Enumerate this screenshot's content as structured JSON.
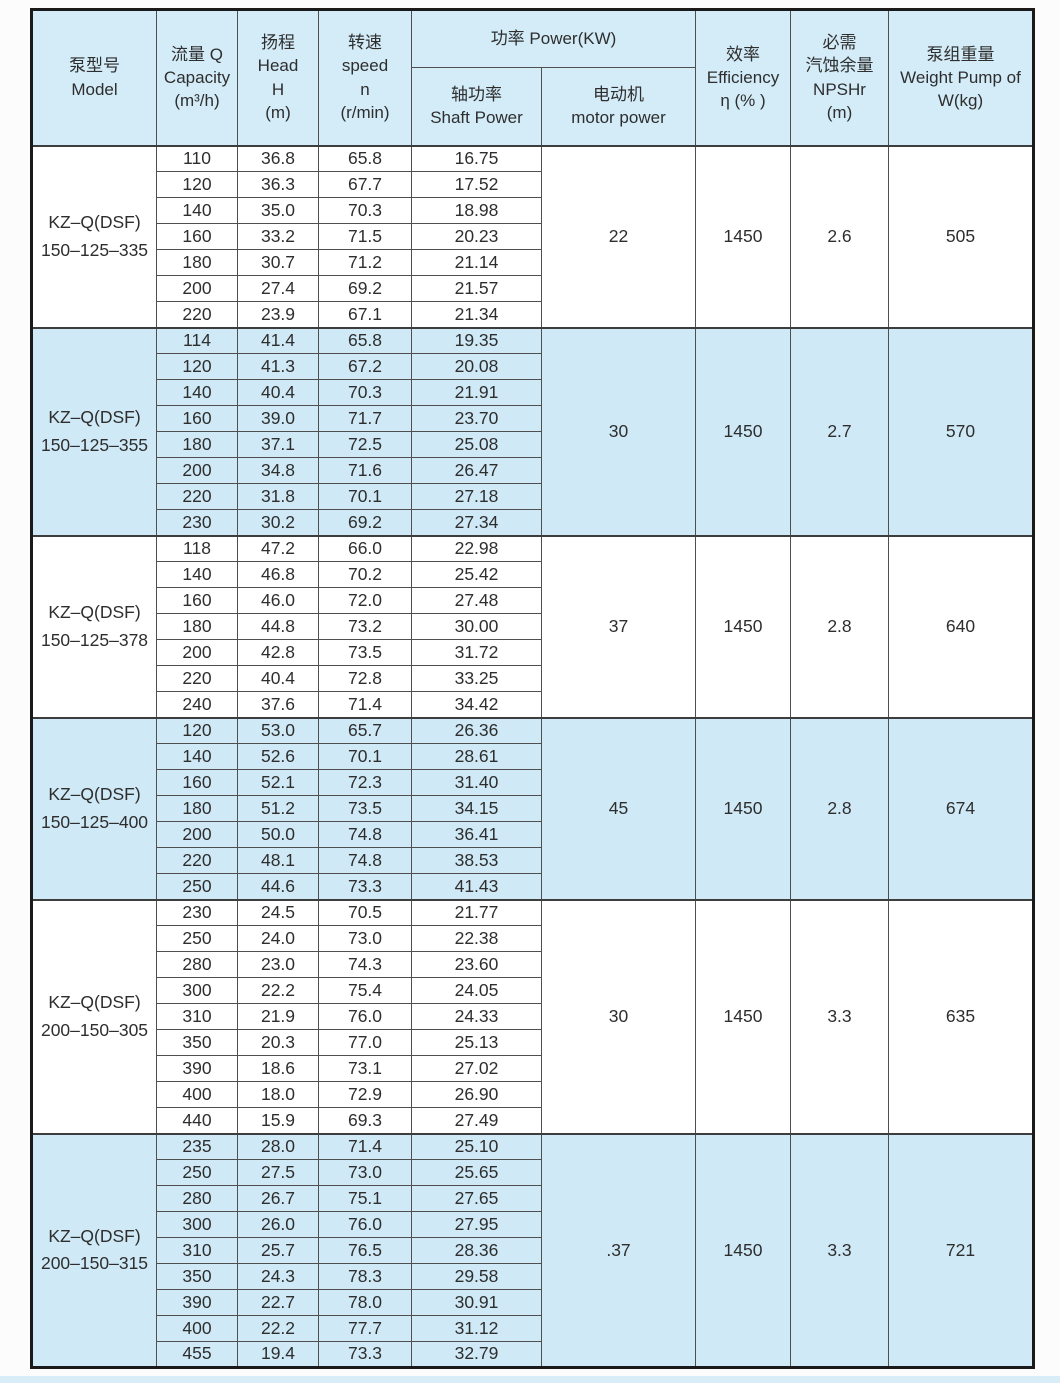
{
  "table": {
    "headers": {
      "model": [
        "泵型号",
        "Model"
      ],
      "capacity": [
        "流量 Q",
        "Capacity",
        "(m³/h)"
      ],
      "head": [
        "扬程",
        "Head",
        "H",
        "(m)"
      ],
      "speed": [
        "转速",
        "speed",
        "n",
        "(r/min)"
      ],
      "power_group": "功率 Power(KW)",
      "shaft_power": [
        "轴功率",
        "Shaft Power"
      ],
      "motor_power": [
        "电动机",
        "motor power"
      ],
      "efficiency": [
        "效率",
        "Efficiency",
        "η (% )"
      ],
      "npshr": [
        "必需",
        "汽蚀余量",
        "NPSHr",
        "(m)"
      ],
      "weight": [
        "泵组重量",
        "Weight Pump of",
        "W(kg)"
      ]
    },
    "groups": [
      {
        "model": [
          "KZ–Q(DSF)",
          "150–125–335"
        ],
        "shaded": false,
        "rows": [
          [
            "110",
            "36.8",
            "65.8",
            "16.75"
          ],
          [
            "120",
            "36.3",
            "67.7",
            "17.52"
          ],
          [
            "140",
            "35.0",
            "70.3",
            "18.98"
          ],
          [
            "160",
            "33.2",
            "71.5",
            "20.23"
          ],
          [
            "180",
            "30.7",
            "71.2",
            "21.14"
          ],
          [
            "200",
            "27.4",
            "69.2",
            "21.57"
          ],
          [
            "220",
            "23.9",
            "67.1",
            "21.34"
          ]
        ],
        "motor_power": "22",
        "efficiency": "1450",
        "npshr": "2.6",
        "weight": "505"
      },
      {
        "model": [
          "KZ–Q(DSF)",
          "150–125–355"
        ],
        "shaded": true,
        "rows": [
          [
            "114",
            "41.4",
            "65.8",
            "19.35"
          ],
          [
            "120",
            "41.3",
            "67.2",
            "20.08"
          ],
          [
            "140",
            "40.4",
            "70.3",
            "21.91"
          ],
          [
            "160",
            "39.0",
            "71.7",
            "23.70"
          ],
          [
            "180",
            "37.1",
            "72.5",
            "25.08"
          ],
          [
            "200",
            "34.8",
            "71.6",
            "26.47"
          ],
          [
            "220",
            "31.8",
            "70.1",
            "27.18"
          ],
          [
            "230",
            "30.2",
            "69.2",
            "27.34"
          ]
        ],
        "motor_power": "30",
        "efficiency": "1450",
        "npshr": "2.7",
        "weight": "570"
      },
      {
        "model": [
          "KZ–Q(DSF)",
          "150–125–378"
        ],
        "shaded": false,
        "rows": [
          [
            "118",
            "47.2",
            "66.0",
            "22.98"
          ],
          [
            "140",
            "46.8",
            "70.2",
            "25.42"
          ],
          [
            "160",
            "46.0",
            "72.0",
            "27.48"
          ],
          [
            "180",
            "44.8",
            "73.2",
            "30.00"
          ],
          [
            "200",
            "42.8",
            "73.5",
            "31.72"
          ],
          [
            "220",
            "40.4",
            "72.8",
            "33.25"
          ],
          [
            "240",
            "37.6",
            "71.4",
            "34.42"
          ]
        ],
        "motor_power": "37",
        "efficiency": "1450",
        "npshr": "2.8",
        "weight": "640"
      },
      {
        "model": [
          "KZ–Q(DSF)",
          "150–125–400"
        ],
        "shaded": true,
        "rows": [
          [
            "120",
            "53.0",
            "65.7",
            "26.36"
          ],
          [
            "140",
            "52.6",
            "70.1",
            "28.61"
          ],
          [
            "160",
            "52.1",
            "72.3",
            "31.40"
          ],
          [
            "180",
            "51.2",
            "73.5",
            "34.15"
          ],
          [
            "200",
            "50.0",
            "74.8",
            "36.41"
          ],
          [
            "220",
            "48.1",
            "74.8",
            "38.53"
          ],
          [
            "250",
            "44.6",
            "73.3",
            "41.43"
          ]
        ],
        "motor_power": "45",
        "efficiency": "1450",
        "npshr": "2.8",
        "weight": "674"
      },
      {
        "model": [
          "KZ–Q(DSF)",
          "200–150–305"
        ],
        "shaded": false,
        "rows": [
          [
            "230",
            "24.5",
            "70.5",
            "21.77"
          ],
          [
            "250",
            "24.0",
            "73.0",
            "22.38"
          ],
          [
            "280",
            "23.0",
            "74.3",
            "23.60"
          ],
          [
            "300",
            "22.2",
            "75.4",
            "24.05"
          ],
          [
            "310",
            "21.9",
            "76.0",
            "24.33"
          ],
          [
            "350",
            "20.3",
            "77.0",
            "25.13"
          ],
          [
            "390",
            "18.6",
            "73.1",
            "27.02"
          ],
          [
            "400",
            "18.0",
            "72.9",
            "26.90"
          ],
          [
            "440",
            "15.9",
            "69.3",
            "27.49"
          ]
        ],
        "motor_power": "30",
        "efficiency": "1450",
        "npshr": "3.3",
        "weight": "635"
      },
      {
        "model": [
          "KZ–Q(DSF)",
          "200–150–315"
        ],
        "shaded": true,
        "rows": [
          [
            "235",
            "28.0",
            "71.4",
            "25.10"
          ],
          [
            "250",
            "27.5",
            "73.0",
            "25.65"
          ],
          [
            "280",
            "26.7",
            "75.1",
            "27.65"
          ],
          [
            "300",
            "26.0",
            "76.0",
            "27.95"
          ],
          [
            "310",
            "25.7",
            "76.5",
            "28.36"
          ],
          [
            "350",
            "24.3",
            "78.3",
            "29.58"
          ],
          [
            "390",
            "22.7",
            "78.0",
            "30.91"
          ],
          [
            "400",
            "22.2",
            "77.7",
            "31.12"
          ],
          [
            "455",
            "19.4",
            "73.3",
            "32.79"
          ]
        ],
        "motor_power": ".37",
        "efficiency": "1450",
        "npshr": "3.3",
        "weight": "721"
      }
    ]
  }
}
